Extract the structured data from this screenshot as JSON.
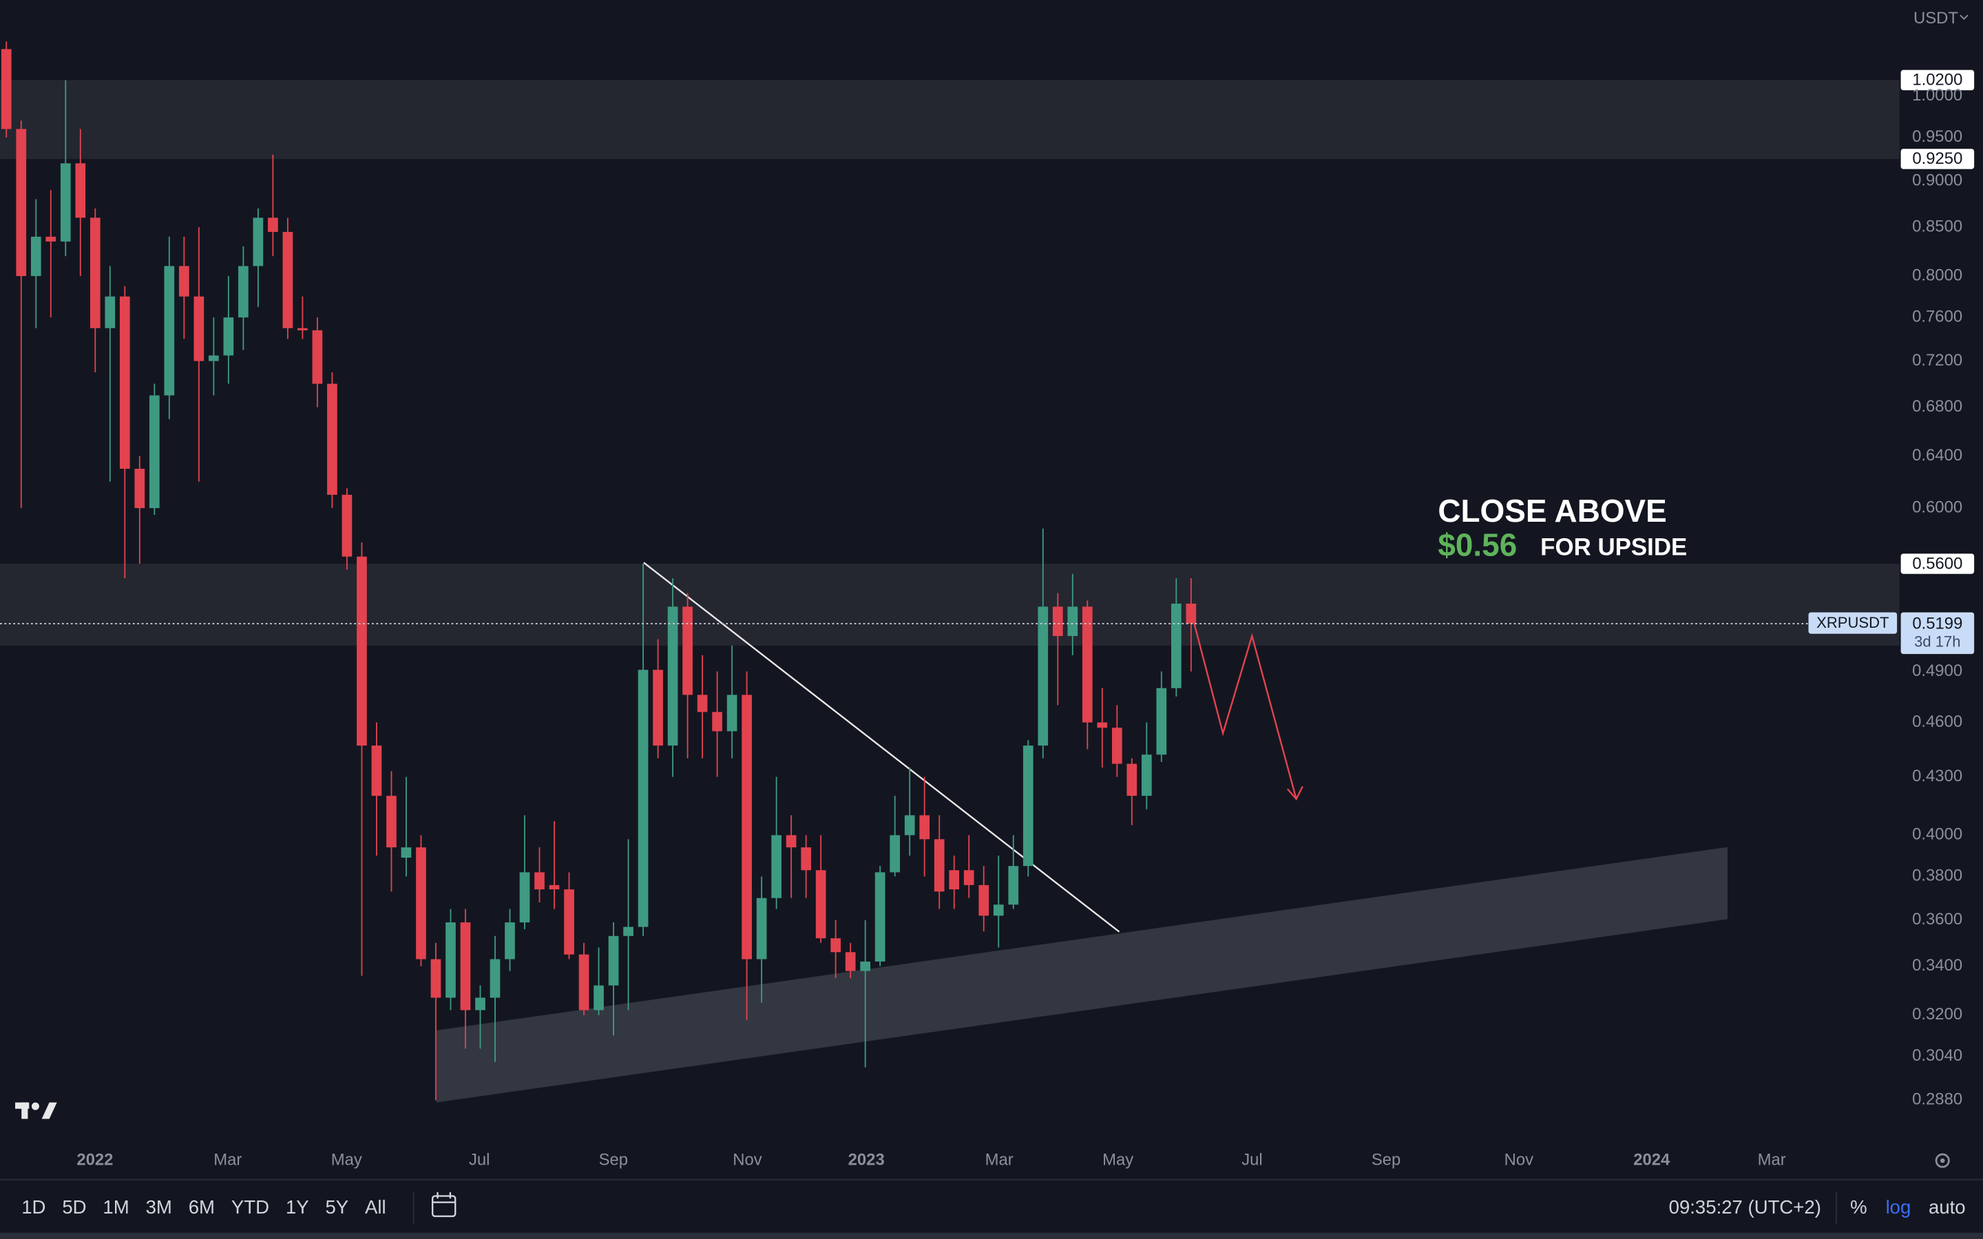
{
  "chart_data": {
    "type": "candlestick",
    "symbol": "XRPUSDT",
    "currency": "USDT",
    "log_scale": true,
    "grid": false,
    "up_color": "#3f9a82",
    "down_color": "#e2434f",
    "xlim": [
      -0.43,
      127.84
    ],
    "xticks": [
      {
        "value": 5.98,
        "label": "2022"
      },
      {
        "value": 14.95,
        "label": "Mar"
      },
      {
        "value": 22.97,
        "label": "May"
      },
      {
        "value": 31.94,
        "label": "Jul"
      },
      {
        "value": 40.99,
        "label": "Sep"
      },
      {
        "value": 50.04,
        "label": "Nov"
      },
      {
        "value": 58.07,
        "label": "2023"
      },
      {
        "value": 67.04,
        "label": "Mar"
      },
      {
        "value": 75.06,
        "label": "May"
      },
      {
        "value": 84.12,
        "label": "Jul"
      },
      {
        "value": 93.17,
        "label": "Sep"
      },
      {
        "value": 102.13,
        "label": "Nov"
      },
      {
        "value": 111.1,
        "label": "2024"
      },
      {
        "value": 119.21,
        "label": "Mar"
      }
    ],
    "ylim": [
      0.2727,
      1.1265
    ],
    "yticks": [
      {
        "value": 1.0,
        "label": "1.0000"
      },
      {
        "value": 0.95,
        "label": "0.9500"
      },
      {
        "value": 0.9,
        "label": "0.9000"
      },
      {
        "value": 0.85,
        "label": "0.8500"
      },
      {
        "value": 0.8,
        "label": "0.8000"
      },
      {
        "value": 0.76,
        "label": "0.7600"
      },
      {
        "value": 0.72,
        "label": "0.7200"
      },
      {
        "value": 0.68,
        "label": "0.6800"
      },
      {
        "value": 0.64,
        "label": "0.6400"
      },
      {
        "value": 0.6,
        "label": "0.6000"
      },
      {
        "value": 0.49,
        "label": "0.4900"
      },
      {
        "value": 0.46,
        "label": "0.4600"
      },
      {
        "value": 0.43,
        "label": "0.4300"
      },
      {
        "value": 0.4,
        "label": "0.4000"
      },
      {
        "value": 0.38,
        "label": "0.3800"
      },
      {
        "value": 0.36,
        "label": "0.3600"
      },
      {
        "value": 0.34,
        "label": "0.3400"
      },
      {
        "value": 0.32,
        "label": "0.3200"
      },
      {
        "value": 0.304,
        "label": "0.3040"
      },
      {
        "value": 0.288,
        "label": "0.2880"
      }
    ],
    "open": [
      1.06,
      0.96,
      0.8,
      0.84,
      0.835,
      0.92,
      0.86,
      0.75,
      0.78,
      0.63,
      0.6,
      0.69,
      0.81,
      0.78,
      0.72,
      0.725,
      0.76,
      0.81,
      0.86,
      0.845,
      0.75,
      0.748,
      0.7,
      0.61,
      0.565,
      0.447,
      0.42,
      0.389,
      0.394,
      0.343,
      0.327,
      0.359,
      0.322,
      0.327,
      0.343,
      0.359,
      0.382,
      0.376,
      0.374,
      0.345,
      0.322,
      0.332,
      0.353,
      0.357,
      0.491,
      0.447,
      0.531,
      0.476,
      0.466,
      0.455,
      0.476,
      0.343,
      0.37,
      0.4,
      0.394,
      0.383,
      0.352,
      0.346,
      0.338,
      0.342,
      0.382,
      0.4,
      0.41,
      0.398,
      0.383,
      0.383,
      0.376,
      0.362,
      0.367,
      0.385,
      0.447,
      0.531,
      0.512,
      0.531,
      0.46,
      0.457,
      0.437,
      0.42,
      0.442,
      0.48,
      0.533
    ],
    "high": [
      1.07,
      0.97,
      0.88,
      0.89,
      1.02,
      0.96,
      0.87,
      0.81,
      0.79,
      0.64,
      0.7,
      0.84,
      0.84,
      0.85,
      0.76,
      0.8,
      0.83,
      0.87,
      0.93,
      0.86,
      0.78,
      0.76,
      0.71,
      0.615,
      0.575,
      0.46,
      0.433,
      0.43,
      0.4,
      0.35,
      0.365,
      0.365,
      0.332,
      0.353,
      0.365,
      0.41,
      0.394,
      0.407,
      0.382,
      0.35,
      0.348,
      0.359,
      0.398,
      0.56,
      0.51,
      0.55,
      0.54,
      0.5,
      0.49,
      0.506,
      0.49,
      0.38,
      0.43,
      0.41,
      0.4,
      0.4,
      0.36,
      0.35,
      0.36,
      0.385,
      0.42,
      0.435,
      0.43,
      0.41,
      0.39,
      0.4,
      0.385,
      0.39,
      0.4,
      0.45,
      0.585,
      0.54,
      0.553,
      0.535,
      0.48,
      0.47,
      0.44,
      0.46,
      0.49,
      0.55,
      0.55
    ],
    "low": [
      0.95,
      0.6,
      0.75,
      0.76,
      0.82,
      0.8,
      0.71,
      0.62,
      0.55,
      0.56,
      0.595,
      0.67,
      0.74,
      0.62,
      0.69,
      0.7,
      0.73,
      0.77,
      0.82,
      0.74,
      0.74,
      0.68,
      0.6,
      0.556,
      0.336,
      0.39,
      0.373,
      0.38,
      0.34,
      0.288,
      0.322,
      0.307,
      0.307,
      0.302,
      0.338,
      0.356,
      0.368,
      0.365,
      0.343,
      0.32,
      0.32,
      0.312,
      0.322,
      0.353,
      0.44,
      0.43,
      0.44,
      0.44,
      0.43,
      0.44,
      0.318,
      0.325,
      0.365,
      0.37,
      0.37,
      0.35,
      0.335,
      0.335,
      0.3,
      0.34,
      0.38,
      0.39,
      0.38,
      0.365,
      0.365,
      0.37,
      0.355,
      0.348,
      0.365,
      0.38,
      0.44,
      0.47,
      0.5,
      0.445,
      0.435,
      0.43,
      0.405,
      0.413,
      0.438,
      0.475,
      0.49
    ],
    "close": [
      0.96,
      0.8,
      0.84,
      0.835,
      0.92,
      0.86,
      0.75,
      0.78,
      0.63,
      0.6,
      0.69,
      0.81,
      0.78,
      0.72,
      0.725,
      0.76,
      0.81,
      0.86,
      0.845,
      0.75,
      0.748,
      0.7,
      0.61,
      0.565,
      0.447,
      0.42,
      0.394,
      0.394,
      0.343,
      0.327,
      0.359,
      0.322,
      0.327,
      0.343,
      0.359,
      0.382,
      0.374,
      0.374,
      0.345,
      0.322,
      0.332,
      0.353,
      0.357,
      0.491,
      0.447,
      0.531,
      0.476,
      0.466,
      0.455,
      0.476,
      0.343,
      0.37,
      0.4,
      0.394,
      0.383,
      0.352,
      0.346,
      0.338,
      0.342,
      0.382,
      0.4,
      0.41,
      0.398,
      0.373,
      0.374,
      0.376,
      0.362,
      0.367,
      0.385,
      0.447,
      0.531,
      0.512,
      0.531,
      0.46,
      0.457,
      0.437,
      0.42,
      0.442,
      0.48,
      0.533,
      0.52
    ],
    "zones": [
      {
        "high": {
          "value": 1.02,
          "label": "1.0200"
        },
        "low": {
          "value": 0.925,
          "label": "0.9250"
        }
      },
      {
        "high": {
          "value": 0.56,
          "label": "0.5600"
        },
        "low": 0.506
      }
    ],
    "last_price": {
      "value": 0.5199,
      "label": "0.5199",
      "countdown": "3d 17h"
    },
    "annotation": {
      "line1": "CLOSE ABOVE",
      "price": "$0.56",
      "line2": "FOR UPSIDE"
    }
  },
  "toolbar": {
    "ranges": [
      "1D",
      "5D",
      "1M",
      "3M",
      "6M",
      "YTD",
      "1Y",
      "5Y",
      "All"
    ],
    "time": "09:35:27 (UTC+2)",
    "percent": "%",
    "log": "log",
    "auto": "auto"
  }
}
